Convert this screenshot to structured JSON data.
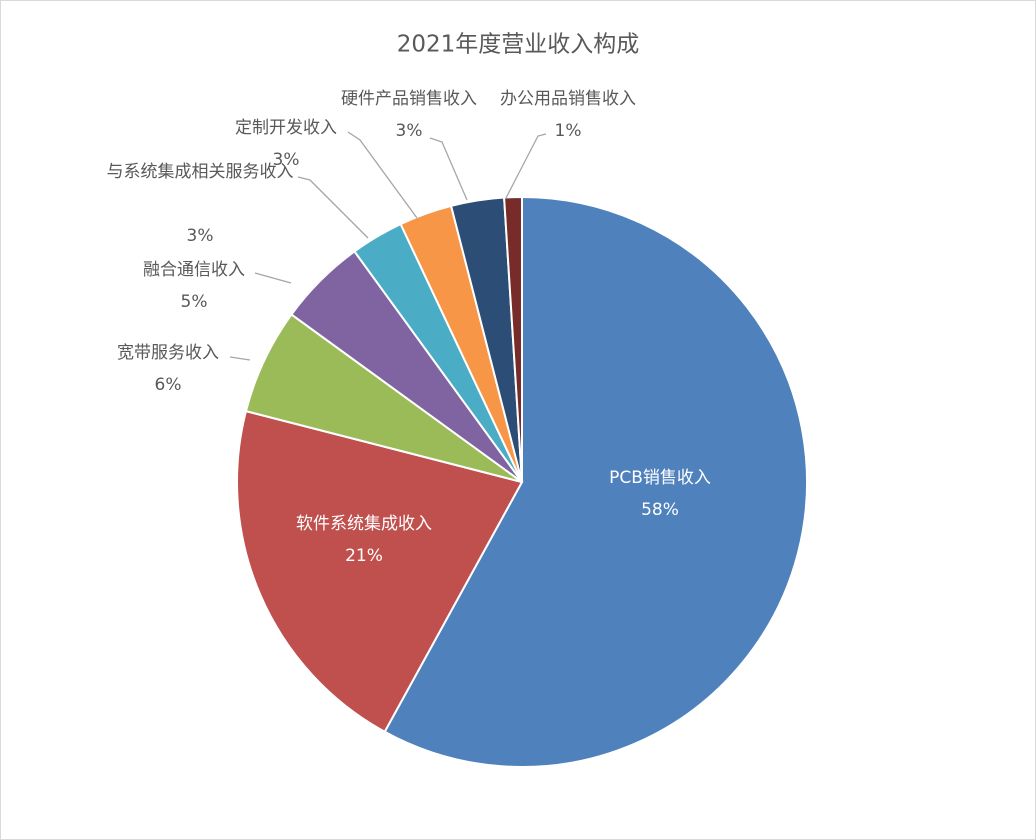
{
  "chart_data": {
    "type": "pie",
    "title": "2021年度营业收入构成",
    "categories": [
      "PCB销售收入",
      "软件系统集成收入",
      "宽带服务收入",
      "融合通信收入",
      "与系统集成相关服务收入",
      "定制开发收入",
      "硬件产品销售收入",
      "办公用品销售收入"
    ],
    "values": [
      58,
      21,
      6,
      5,
      3,
      3,
      3,
      1
    ],
    "value_labels": [
      "58%",
      "21%",
      "6%",
      "5%",
      "3%",
      "3%",
      "3%",
      "1%"
    ],
    "colors": [
      "#4f81bd",
      "#c0504d",
      "#9bbb59",
      "#8064a2",
      "#4bacc6",
      "#f79646",
      "#2c4d75",
      "#772c2a"
    ]
  }
}
